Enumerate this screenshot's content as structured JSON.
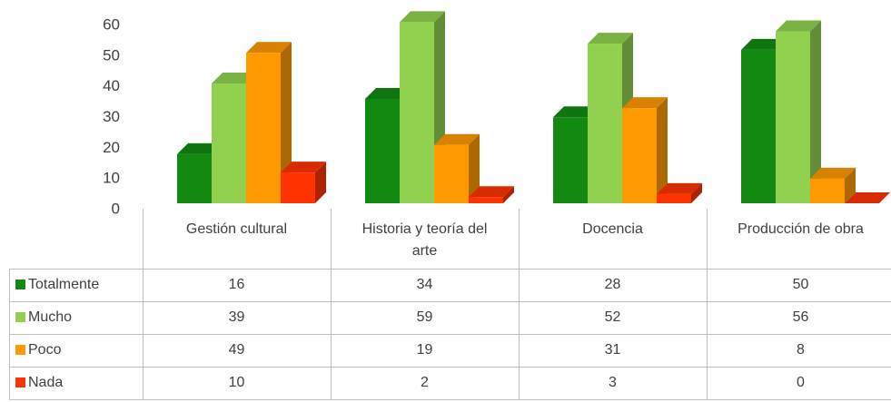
{
  "chart_data": {
    "type": "bar3d",
    "categories": [
      "Gestión cultural",
      "Historia y teoría del arte",
      "Docencia",
      "Producción de obra"
    ],
    "series": [
      {
        "name": "Totalmente",
        "color": "#128a12",
        "values": [
          16,
          34,
          28,
          50
        ]
      },
      {
        "name": "Mucho",
        "color": "#92d050",
        "values": [
          39,
          59,
          52,
          56
        ]
      },
      {
        "name": "Poco",
        "color": "#ff9900",
        "values": [
          49,
          19,
          31,
          8
        ]
      },
      {
        "name": "Nada",
        "color": "#ff3300",
        "values": [
          10,
          2,
          3,
          0
        ]
      }
    ],
    "ylim": [
      0,
      60
    ],
    "yticks": [
      0,
      10,
      20,
      30,
      40,
      50,
      60
    ],
    "grid": false,
    "data_table": true
  }
}
